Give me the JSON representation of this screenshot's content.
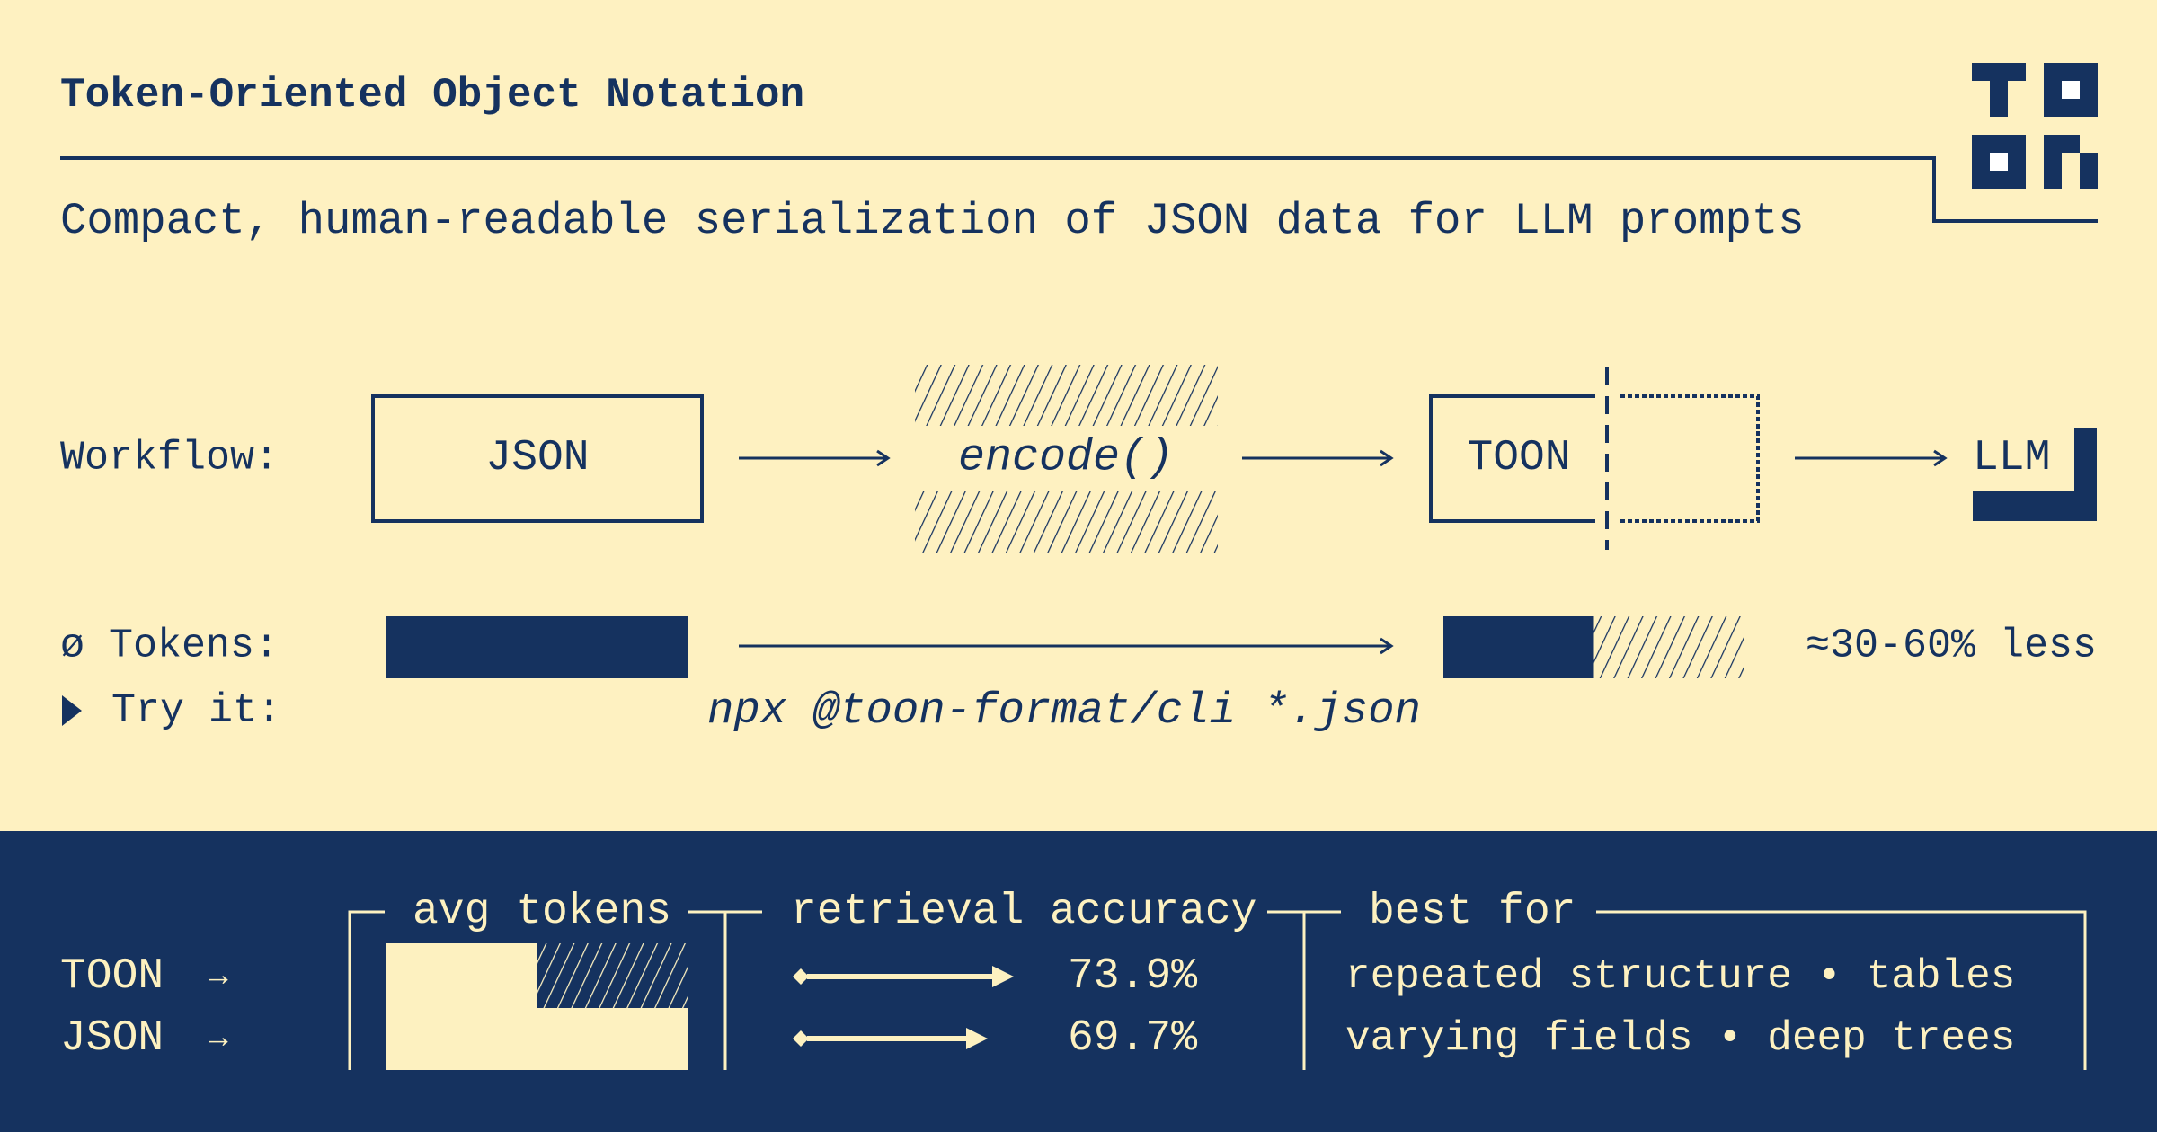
{
  "header": {
    "title": "Token-Oriented Object Notation",
    "subtitle": "Compact, human-readable serialization of JSON data for LLM prompts",
    "logo_text": "TOON"
  },
  "workflow": {
    "label": "Workflow:",
    "steps": [
      "JSON",
      "encode()",
      "TOON",
      "LLM"
    ]
  },
  "tokens": {
    "label": "ø Tokens:",
    "savings": "≈30-60% less",
    "toon_relative_fill": 0.5
  },
  "try_it": {
    "label": "Try it:",
    "command": "npx @toon-format/cli *.json"
  },
  "comparison": {
    "rows": [
      "TOON",
      "JSON"
    ],
    "arrow": "→",
    "avg_tokens_label": "avg tokens",
    "retrieval_label": "retrieval accuracy",
    "best_for_label": "best for",
    "accuracy": [
      "73.9%",
      "69.7%"
    ],
    "best_for": [
      "repeated structure • tables",
      "varying fields • deep trees"
    ]
  },
  "colors": {
    "background": "#fef1c1",
    "navy": "#15325f"
  }
}
